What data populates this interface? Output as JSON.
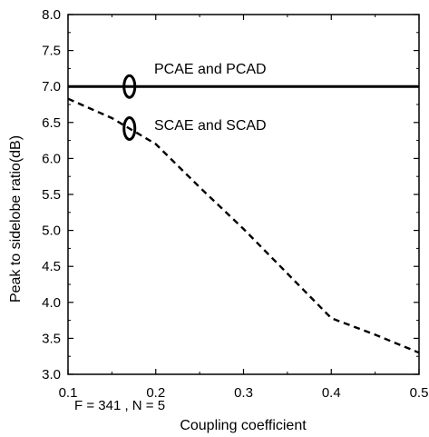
{
  "chart_data": {
    "type": "line",
    "title": "",
    "xlabel": "Coupling coefficient",
    "ylabel": "Peak to sidelobe ratio(dB)",
    "xlim": [
      0.1,
      0.5
    ],
    "ylim": [
      3.0,
      8.0
    ],
    "xticks": [
      "0.1",
      "0.2",
      "0.3",
      "0.4",
      "0.5"
    ],
    "yticks": [
      "3.0",
      "3.5",
      "4.0",
      "4.5",
      "5.0",
      "5.5",
      "6.0",
      "6.5",
      "7.0",
      "7.5",
      "8.0"
    ],
    "grid": false,
    "series": [
      {
        "name": "PCAE and PCAD",
        "style": "solid",
        "x": [
          0.1,
          0.2,
          0.3,
          0.4,
          0.5
        ],
        "y": [
          7.0,
          7.0,
          7.0,
          7.0,
          7.0
        ]
      },
      {
        "name": "SCAE and SCAD",
        "style": "dashed",
        "x": [
          0.1,
          0.15,
          0.2,
          0.25,
          0.3,
          0.35,
          0.4,
          0.45,
          0.5
        ],
        "y": [
          6.83,
          6.56,
          6.2,
          5.6,
          5.02,
          4.4,
          3.78,
          3.55,
          3.3
        ]
      }
    ],
    "annotation": "F = 341 , N = 5"
  }
}
